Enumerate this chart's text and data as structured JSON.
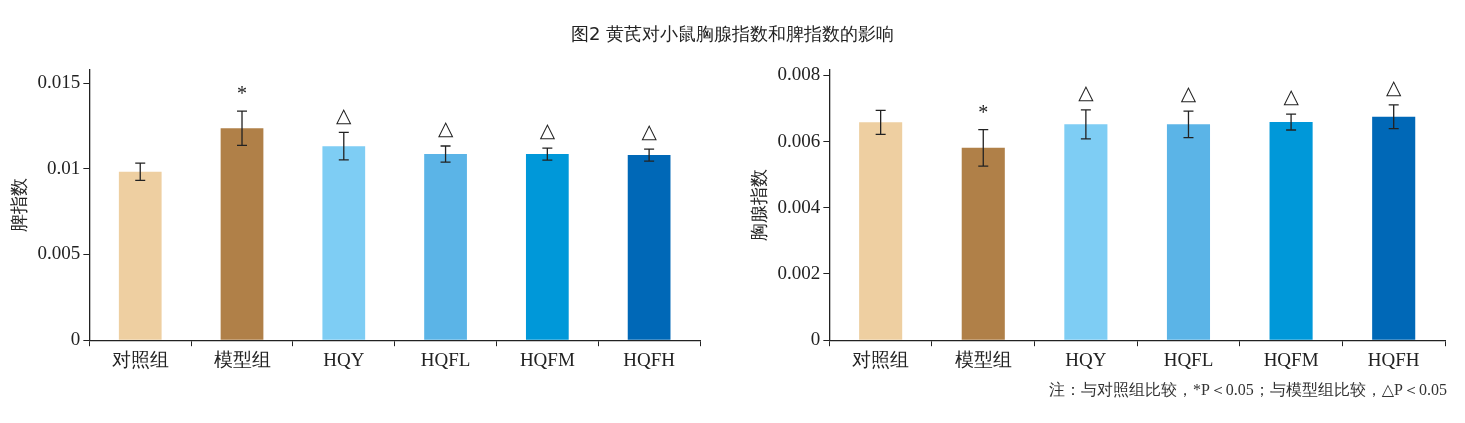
{
  "chart_data": [
    {
      "type": "bar",
      "title": "图2 黄芪对小鼠胸腺指数和脾指数的影响",
      "ylabel": "脾指数",
      "categories": [
        "对照组",
        "模型组",
        "HQY",
        "HQFL",
        "HQFM",
        "HQFH"
      ],
      "values": [
        0.00983,
        0.01237,
        0.01132,
        0.01086,
        0.01086,
        0.0108
      ],
      "errors": [
        0.0005,
        0.001,
        0.0008,
        0.00047,
        0.00035,
        0.00035
      ],
      "colors": [
        "#eecfa1",
        "#b08048",
        "#7ecdf4",
        "#5bb4e7",
        "#0098d9",
        "#0068b7"
      ],
      "ylim": [
        0,
        0.0158
      ],
      "yticks": [
        0,
        0.005,
        0.01,
        0.015
      ],
      "grid": false,
      "legend": false,
      "annotations": [
        {
          "text": "*",
          "x": "模型组",
          "y": 0.01237
        },
        {
          "text": "△",
          "x": "HQY",
          "y": 0.01132
        },
        {
          "text": "△",
          "x": "HQFL",
          "y": 0.01086
        },
        {
          "text": "△",
          "x": "HQFM",
          "y": 0.01086
        },
        {
          "text": "△",
          "x": "HQFH",
          "y": 0.0108
        }
      ]
    },
    {
      "type": "bar",
      "ylabel": "胸腺指数",
      "categories": [
        "对照组",
        "模型组",
        "HQY",
        "HQFL",
        "HQFM",
        "HQFH"
      ],
      "values": [
        0.00658,
        0.00581,
        0.00652,
        0.00652,
        0.00659,
        0.00675
      ],
      "errors": [
        0.00036,
        0.00055,
        0.00044,
        0.0004,
        0.00024,
        0.00036
      ],
      "colors": [
        "#eecfa1",
        "#b08048",
        "#7ecdf4",
        "#5bb4e7",
        "#0098d9",
        "#0068b7"
      ],
      "ylim": [
        0,
        0.00818
      ],
      "yticks": [
        0,
        0.002,
        0.004,
        0.006,
        0.008
      ],
      "grid": false,
      "legend": false,
      "annotations": [
        {
          "text": "*",
          "x": "模型组",
          "y": 0.00581
        },
        {
          "text": "△",
          "x": "HQY",
          "y": 0.00652
        },
        {
          "text": "△",
          "x": "HQFL",
          "y": 0.00652
        },
        {
          "text": "△",
          "x": "HQFM",
          "y": 0.00659
        },
        {
          "text": "△",
          "x": "HQFH",
          "y": 0.00675
        },
        "注：与对照组比较，*P＜0.05；与模型组比较，△P＜0.05"
      ]
    }
  ]
}
